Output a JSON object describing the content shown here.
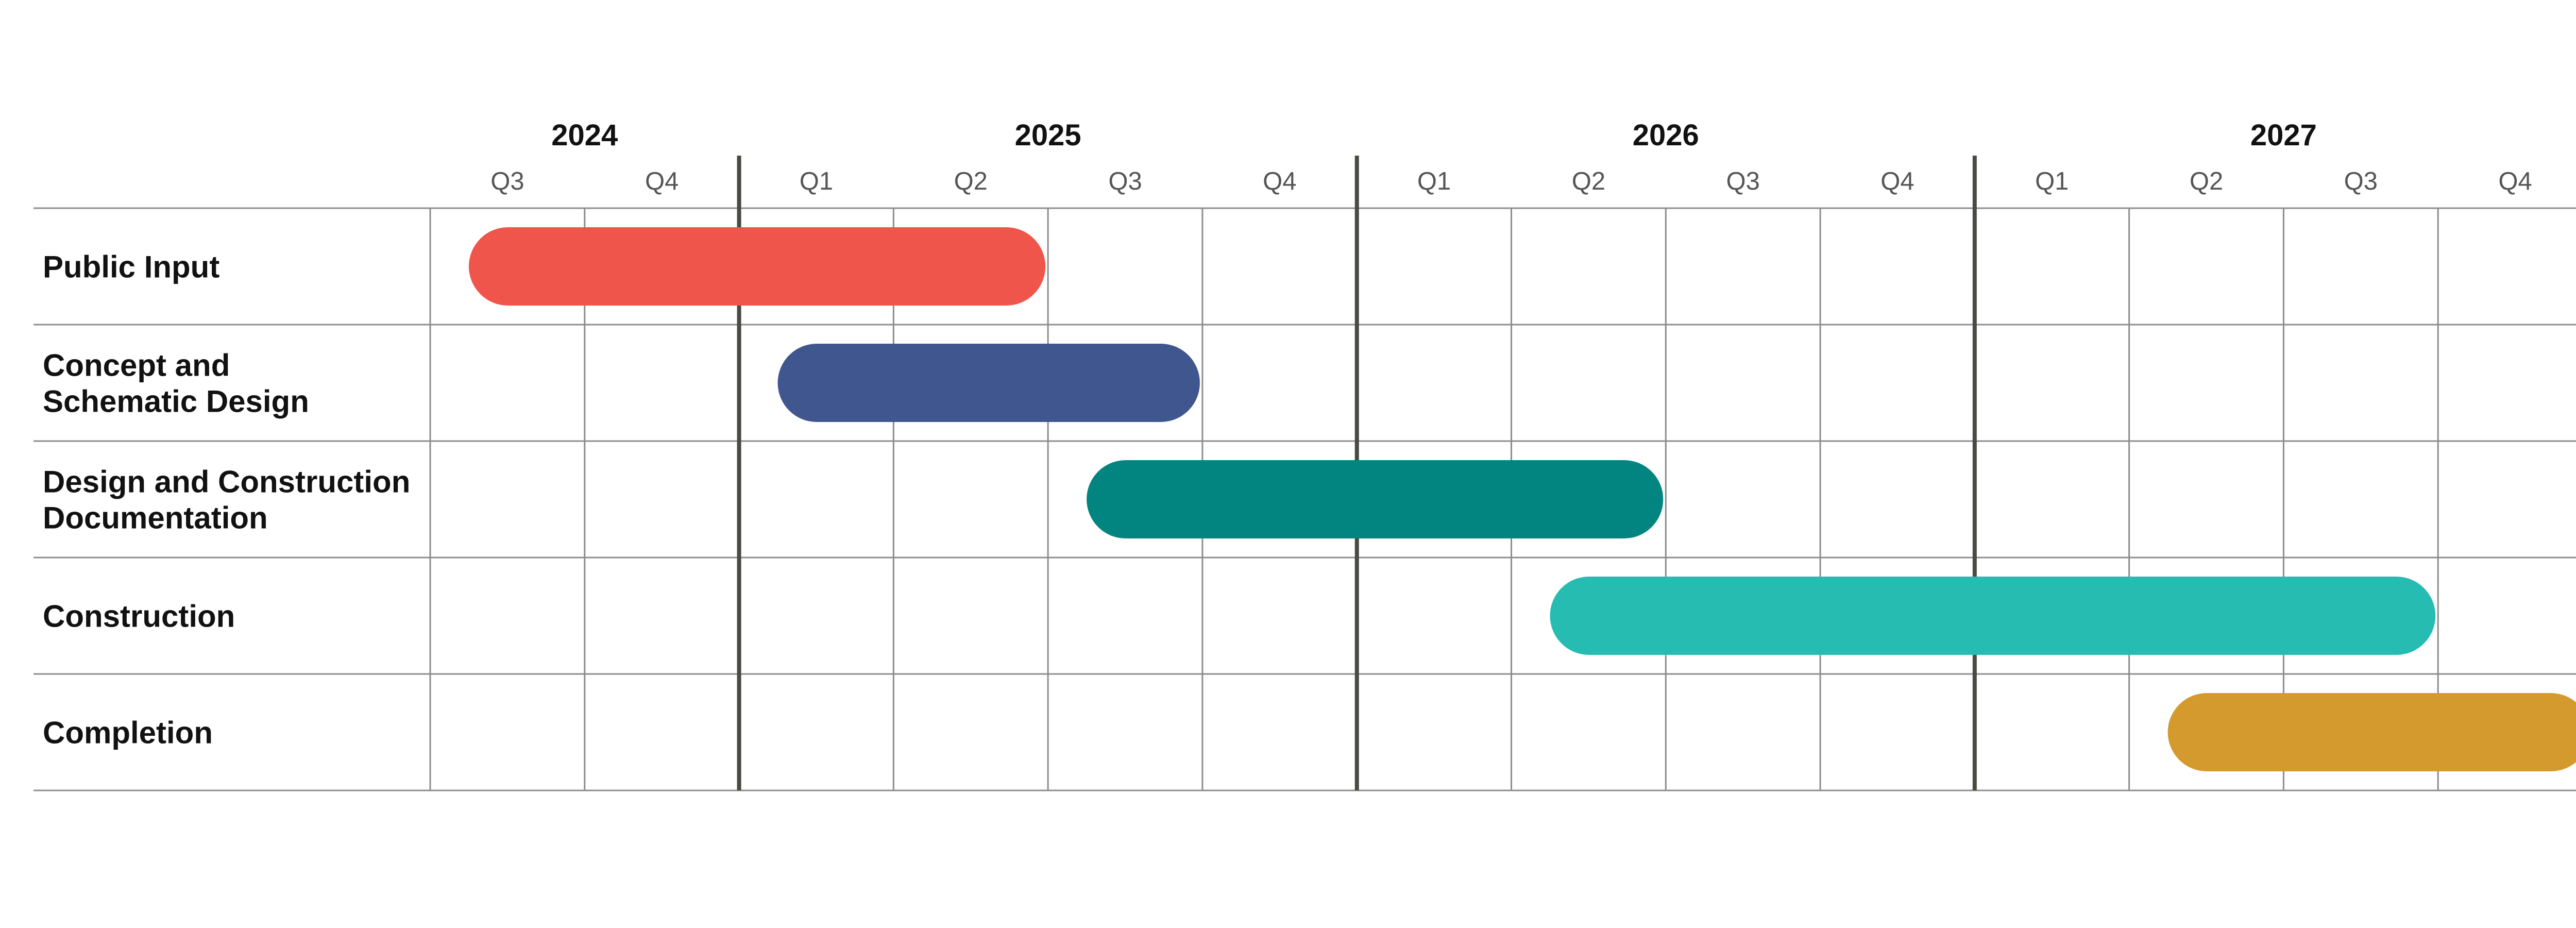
{
  "chart_data": {
    "type": "gantt",
    "title": "",
    "years": [
      {
        "label": "2024",
        "quarters": [
          "Q3",
          "Q4"
        ]
      },
      {
        "label": "2025",
        "quarters": [
          "Q1",
          "Q2",
          "Q3",
          "Q4"
        ]
      },
      {
        "label": "2026",
        "quarters": [
          "Q1",
          "Q2",
          "Q3",
          "Q4"
        ]
      },
      {
        "label": "2027",
        "quarters": [
          "Q1",
          "Q2",
          "Q3",
          "Q4"
        ]
      }
    ],
    "tasks": [
      {
        "label_lines": [
          "Public Input"
        ],
        "start": "2024 Q3",
        "end": "2025 Q2",
        "color": "#F0554C"
      },
      {
        "label_lines": [
          "Concept and",
          "Schematic Design"
        ],
        "start": "2025 Q1",
        "end": "2025 Q3",
        "color": "#3F568F"
      },
      {
        "label_lines": [
          "Design and Construction",
          "Documentation"
        ],
        "start": "2025 Q3",
        "end": "2026 Q2",
        "color": "#028580"
      },
      {
        "label_lines": [
          "Construction"
        ],
        "start": "2026 Q2",
        "end": "2027 Q3",
        "color": "#26BCB2"
      },
      {
        "label_lines": [
          "Completion"
        ],
        "start": "2027 Q2",
        "end": "2027 Q4",
        "color": "#D49A2E"
      }
    ],
    "grid": true
  }
}
